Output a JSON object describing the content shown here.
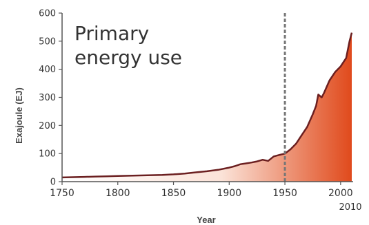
{
  "chart_data": {
    "type": "area",
    "title_lines": [
      "Primary",
      "energy use"
    ],
    "xlabel": "Year",
    "ylabel": "Exajoule (EJ)",
    "xlim": [
      1750,
      2010
    ],
    "ylim": [
      0,
      600
    ],
    "x_ticks": [
      {
        "value": 1750,
        "label": "1750"
      },
      {
        "value": 1800,
        "label": "1800"
      },
      {
        "value": 1850,
        "label": "1850"
      },
      {
        "value": 1900,
        "label": "1900"
      },
      {
        "value": 1950,
        "label": "1950"
      },
      {
        "value": 2000,
        "label": "2000"
      }
    ],
    "end_label": {
      "value": 2010,
      "label": "2010"
    },
    "y_ticks": [
      {
        "value": 0,
        "label": "0"
      },
      {
        "value": 100,
        "label": "100"
      },
      {
        "value": 200,
        "label": "200"
      },
      {
        "value": 300,
        "label": "300"
      },
      {
        "value": 400,
        "label": "400"
      },
      {
        "value": 500,
        "label": "500"
      },
      {
        "value": 600,
        "label": "600"
      }
    ],
    "reference_line": {
      "x": 1950,
      "style": "dashed",
      "color": "#777777"
    },
    "series": [
      {
        "x": [
          1750,
          1760,
          1770,
          1780,
          1790,
          1800,
          1810,
          1820,
          1830,
          1840,
          1850,
          1860,
          1870,
          1880,
          1890,
          1900,
          1905,
          1910,
          1915,
          1920,
          1925,
          1930,
          1935,
          1940,
          1945,
          1950,
          1955,
          1960,
          1965,
          1970,
          1975,
          1978,
          1980,
          1983,
          1985,
          1990,
          1995,
          2000,
          2005,
          2008,
          2010
        ],
        "y": [
          15,
          16,
          17,
          18,
          19,
          20,
          21,
          22,
          23,
          24,
          26,
          29,
          33,
          37,
          42,
          50,
          55,
          62,
          65,
          68,
          72,
          78,
          74,
          90,
          95,
          100,
          115,
          135,
          165,
          195,
          240,
          270,
          310,
          300,
          315,
          360,
          390,
          410,
          440,
          500,
          530
        ]
      }
    ],
    "colors": {
      "line": "#6b1f20",
      "fill_light": "#fbe3d8",
      "fill_dark": "#e04a1c",
      "axis": "#555555"
    }
  }
}
